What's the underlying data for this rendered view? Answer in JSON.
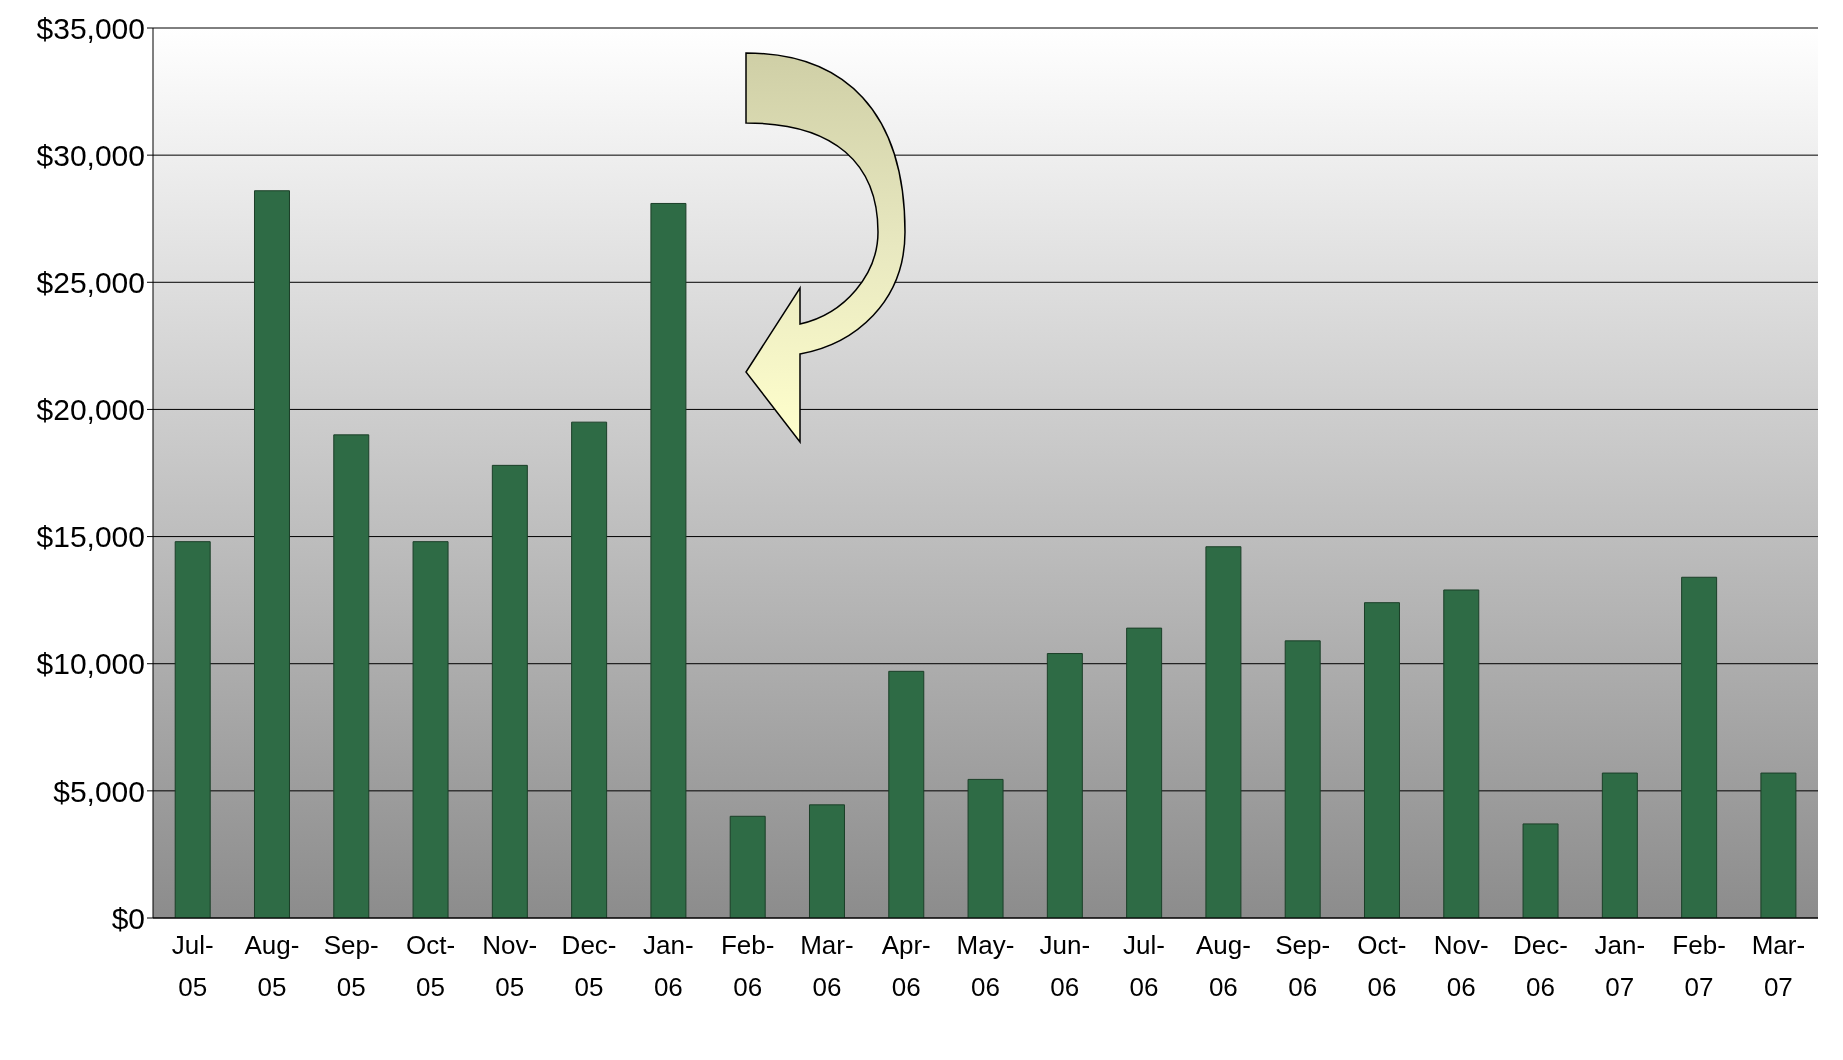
{
  "chart_data": {
    "type": "bar",
    "categories": [
      "Jul-05",
      "Aug-05",
      "Sep-05",
      "Oct-05",
      "Nov-05",
      "Dec-05",
      "Jan-06",
      "Feb-06",
      "Mar-06",
      "Apr-06",
      "May-06",
      "Jun-06",
      "Jul-06",
      "Aug-06",
      "Sep-06",
      "Oct-06",
      "Nov-06",
      "Dec-06",
      "Jan-07",
      "Feb-07",
      "Mar-07"
    ],
    "values": [
      14800,
      28600,
      19000,
      14800,
      17800,
      19500,
      28100,
      4000,
      4450,
      9700,
      5450,
      10400,
      11400,
      14600,
      10900,
      12400,
      12900,
      3700,
      5700,
      13400,
      5700
    ],
    "color": "#2e6b45",
    "ylim": [
      0,
      35000
    ],
    "yticks": [
      {
        "value": 0,
        "label": "$0"
      },
      {
        "value": 5000,
        "label": "$5,000"
      },
      {
        "value": 10000,
        "label": "$10,000"
      },
      {
        "value": 15000,
        "label": "$15,000"
      },
      {
        "value": 20000,
        "label": "$20,000"
      },
      {
        "value": 25000,
        "label": "$25,000"
      },
      {
        "value": 30000,
        "label": "$30,000"
      },
      {
        "value": 35000,
        "label": "$35,000"
      }
    ],
    "grid": "y"
  }
}
